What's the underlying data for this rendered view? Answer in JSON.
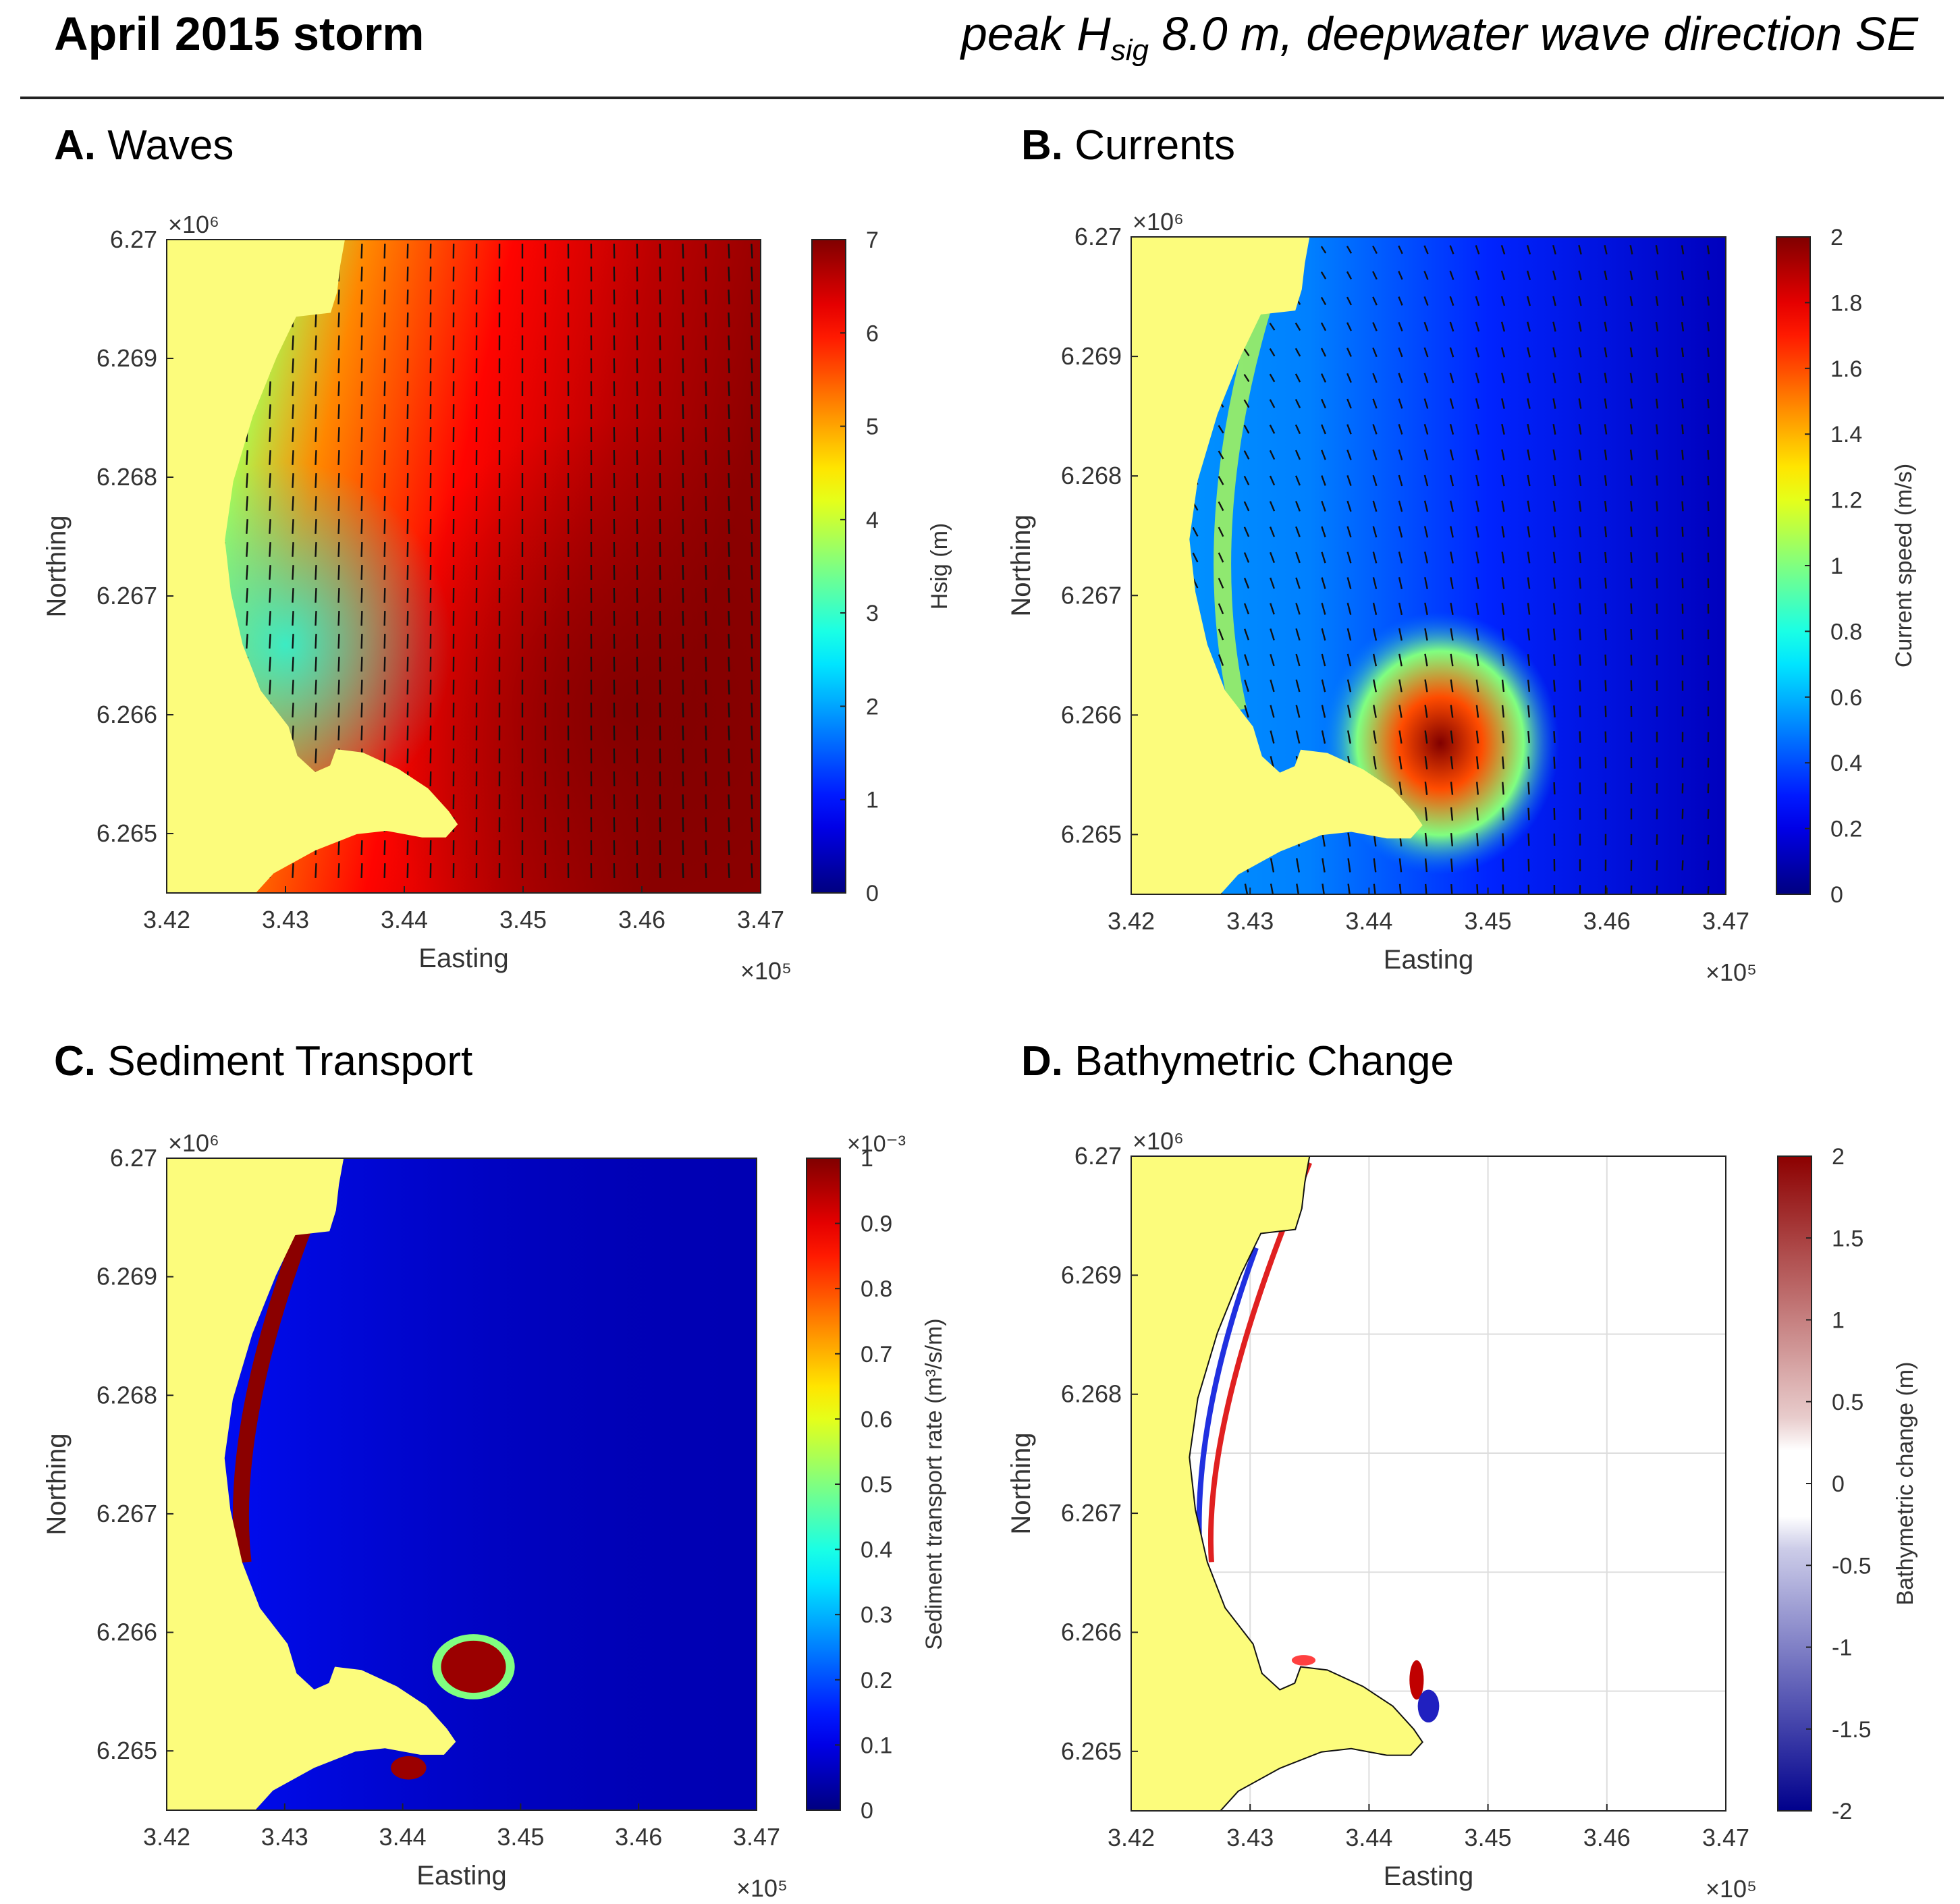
{
  "header": {
    "title": "April 2015 storm",
    "subtitle_pre": "peak H",
    "subtitle_sub": "sig",
    "subtitle_post": " 8.0 m, deepwater wave direction SE"
  },
  "chart_data": [
    {
      "type": "heatmap",
      "panel_letter": "A.",
      "panel_name": "Waves",
      "xlabel": "Easting",
      "ylabel": "Northing",
      "x_exponent": "×10⁵",
      "y_exponent": "×10⁶",
      "xlim": [
        342000,
        347000
      ],
      "ylim": [
        6264500,
        6270000
      ],
      "xticks": [
        "3.42",
        "3.43",
        "3.44",
        "3.45",
        "3.46",
        "3.47"
      ],
      "yticks": [
        "6.265",
        "6.266",
        "6.267",
        "6.268",
        "6.269",
        "6.27"
      ],
      "colorbar": {
        "label": "Hsig (m)",
        "range": [
          0,
          7
        ],
        "ticks": [
          "0",
          "1",
          "2",
          "3",
          "4",
          "5",
          "6",
          "7"
        ],
        "colormap": "jet"
      },
      "vectors": true,
      "land_color": "#FCFC7C"
    },
    {
      "type": "heatmap",
      "panel_letter": "B.",
      "panel_name": "Currents",
      "xlabel": "Easting",
      "ylabel": "Northing",
      "x_exponent": "×10⁵",
      "y_exponent": "×10⁶",
      "xlim": [
        342000,
        347000
      ],
      "ylim": [
        6264500,
        6270000
      ],
      "xticks": [
        "3.42",
        "3.43",
        "3.44",
        "3.45",
        "3.46",
        "3.47"
      ],
      "yticks": [
        "6.265",
        "6.266",
        "6.267",
        "6.268",
        "6.269",
        "6.27"
      ],
      "colorbar": {
        "label": "Current speed (m/s)",
        "range": [
          0,
          2
        ],
        "ticks": [
          "0",
          "0.2",
          "0.4",
          "0.6",
          "0.8",
          "1",
          "1.2",
          "1.4",
          "1.6",
          "1.8",
          "2"
        ],
        "colormap": "jet"
      },
      "vectors": true,
      "land_color": "#FCFC7C"
    },
    {
      "type": "heatmap",
      "panel_letter": "C.",
      "panel_name": "Sediment Transport",
      "xlabel": "Easting",
      "ylabel": "Northing",
      "x_exponent": "×10⁵",
      "y_exponent": "×10⁶",
      "xlim": [
        342000,
        347000
      ],
      "ylim": [
        6264500,
        6270000
      ],
      "xticks": [
        "3.42",
        "3.43",
        "3.44",
        "3.45",
        "3.46",
        "3.47"
      ],
      "yticks": [
        "6.265",
        "6.266",
        "6.267",
        "6.268",
        "6.269",
        "6.27"
      ],
      "colorbar": {
        "label": "Sediment transport rate (m³/s/m)",
        "exponent": "×10⁻³",
        "range": [
          0,
          0.001
        ],
        "ticks": [
          "0",
          "0.1",
          "0.2",
          "0.3",
          "0.4",
          "0.5",
          "0.6",
          "0.7",
          "0.8",
          "0.9",
          "1"
        ],
        "colormap": "jet"
      },
      "vectors": false,
      "land_color": "#FCFC7C"
    },
    {
      "type": "heatmap",
      "panel_letter": "D.",
      "panel_name": "Bathymetric Change",
      "xlabel": "Easting",
      "ylabel": "Northing",
      "x_exponent": "×10⁵",
      "y_exponent": "×10⁶",
      "xlim": [
        342000,
        347000
      ],
      "ylim": [
        6264500,
        6270000
      ],
      "xticks": [
        "3.42",
        "3.43",
        "3.44",
        "3.45",
        "3.46",
        "3.47"
      ],
      "yticks": [
        "6.265",
        "6.266",
        "6.267",
        "6.268",
        "6.269",
        "6.27"
      ],
      "colorbar": {
        "label": "Bathymetric change (m)",
        "range": [
          -2,
          2
        ],
        "ticks": [
          "-2",
          "-1.5",
          "-1",
          "-0.5",
          "0",
          "0.5",
          "1",
          "1.5",
          "2"
        ],
        "colormap": "blue-white-red"
      },
      "vectors": false,
      "grid": true,
      "land_color": "#FCFC7C"
    }
  ]
}
